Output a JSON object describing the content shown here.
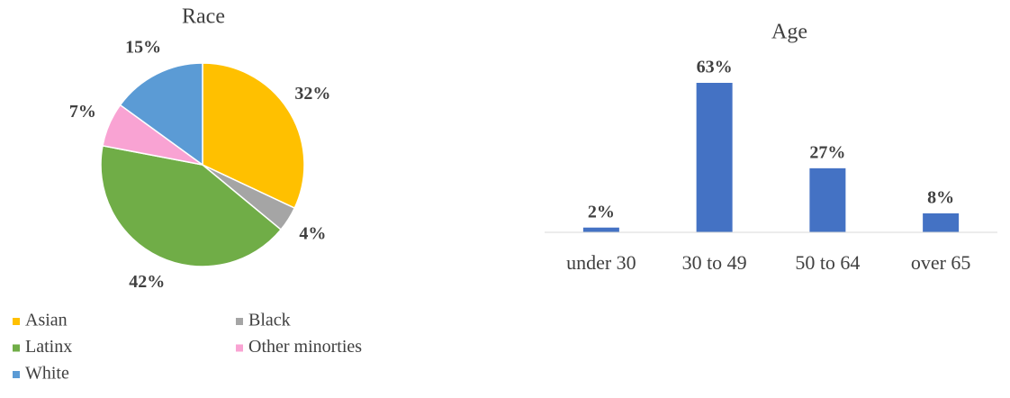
{
  "chart_data": [
    {
      "type": "pie",
      "title": "Race",
      "categories": [
        "Asian",
        "Black",
        "Latinx",
        "Other minorties",
        "White"
      ],
      "values": [
        32,
        4,
        42,
        7,
        15
      ],
      "value_labels": [
        "32%",
        "4%",
        "42%",
        "7%",
        "15%"
      ],
      "colors": [
        "#ffc000",
        "#a5a5a5",
        "#70ad47",
        "#f9a3d3",
        "#5b9bd5"
      ],
      "legend": "bottom"
    },
    {
      "type": "bar",
      "title": "Age",
      "categories": [
        "under 30",
        "30 to 49",
        "50 to 64",
        "over 65"
      ],
      "values": [
        2,
        63,
        27,
        8
      ],
      "value_labels": [
        "2%",
        "63%",
        "27%",
        "8%"
      ],
      "color": "#4472c4"
    }
  ]
}
